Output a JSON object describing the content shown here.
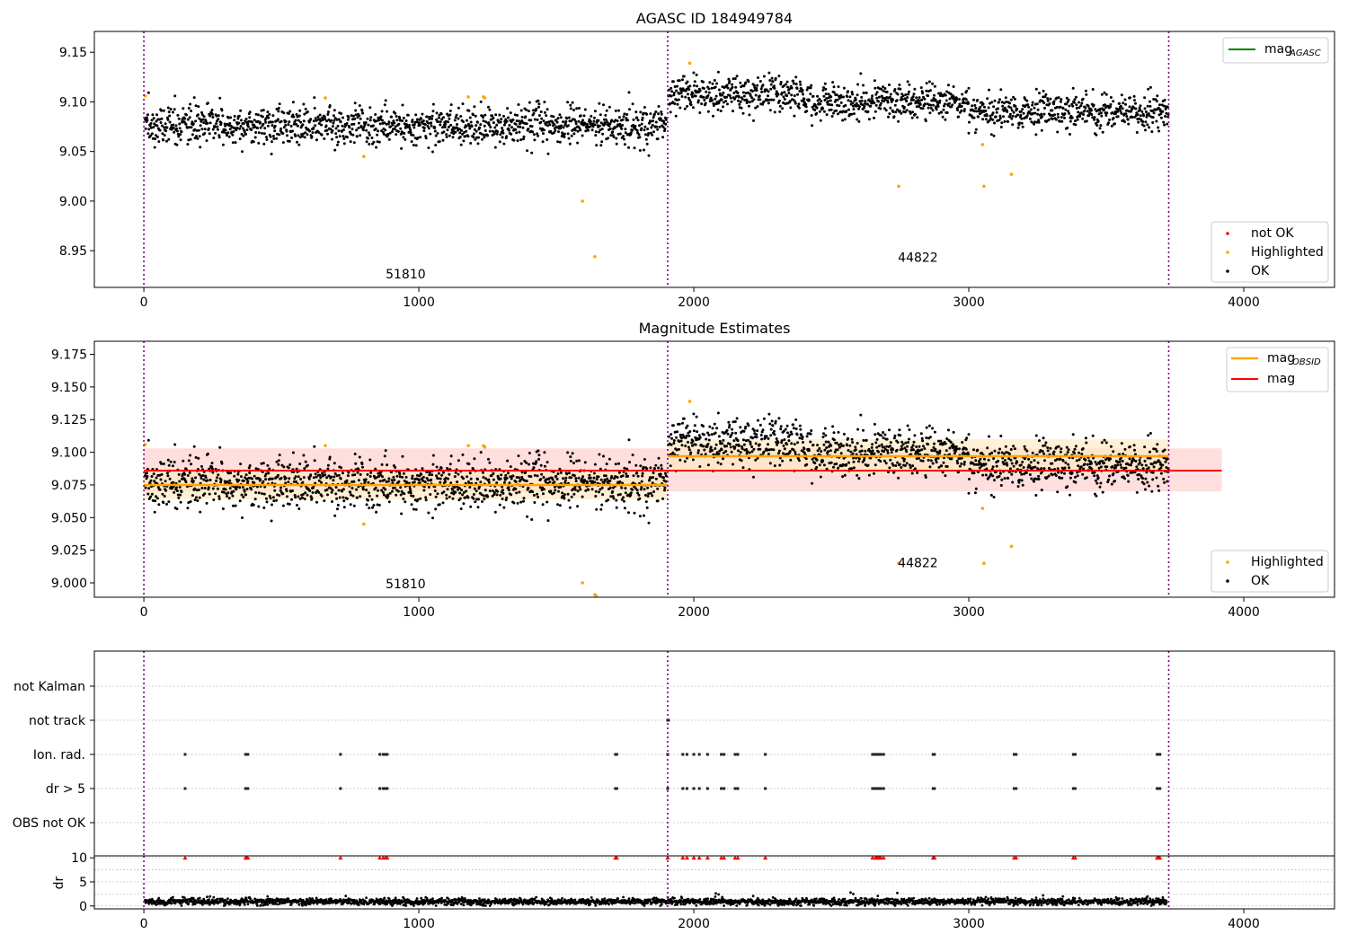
{
  "chart_data": [
    {
      "type": "scatter",
      "title": "AGASC ID 184949784",
      "xlim": [
        -180,
        4330
      ],
      "ylim": [
        8.913,
        9.171
      ],
      "xticks": [
        0,
        1000,
        2000,
        3000,
        4000
      ],
      "yticks": [
        8.95,
        9.0,
        9.05,
        9.1,
        9.15
      ],
      "ytick_labels": [
        "8.95",
        "9.00",
        "9.05",
        "9.10",
        "9.15"
      ],
      "grid": false,
      "vlines": [
        0,
        1905,
        3727
      ],
      "annotations": [
        {
          "text": "51810",
          "x": 952,
          "y": 8.922
        },
        {
          "text": "44822",
          "x": 2815,
          "y": 8.939
        }
      ],
      "series": [
        {
          "name": "OK",
          "color": "#000000",
          "segments": [
            {
              "x0": 5,
              "x1": 1900,
              "mean": 9.076,
              "sd": 0.0095
            },
            {
              "x0": 1908,
              "x1": 2400,
              "mean": 9.108,
              "sd": 0.009
            },
            {
              "x0": 2400,
              "x1": 3000,
              "mean": 9.1,
              "sd": 0.009
            },
            {
              "x0": 3000,
              "x1": 3727,
              "mean": 9.09,
              "sd": 0.009
            }
          ]
        },
        {
          "name": "Highlighted",
          "color": "#ffa500",
          "points": [
            [
              5,
              9.106
            ],
            [
              660,
              9.104
            ],
            [
              800,
              9.045
            ],
            [
              1180,
              9.105
            ],
            [
              1235,
              9.105
            ],
            [
              1240,
              9.104
            ],
            [
              1595,
              9.0
            ],
            [
              1640,
              8.944
            ],
            [
              1985,
              9.139
            ],
            [
              2745,
              9.015
            ],
            [
              3050,
              9.057
            ],
            [
              3055,
              9.015
            ],
            [
              3155,
              9.027
            ]
          ]
        },
        {
          "name": "not OK",
          "color": "#ff0000",
          "points": []
        }
      ],
      "legends": [
        {
          "position": "top-right",
          "entries": [
            {
              "label": "mag",
              "sub": "AGASC",
              "kind": "line",
              "color": "#008000"
            }
          ]
        },
        {
          "position": "bottom-right",
          "entries": [
            {
              "label": "not OK",
              "kind": "dot",
              "color": "#ff0000"
            },
            {
              "label": "Highlighted",
              "kind": "dot",
              "color": "#ffa500"
            },
            {
              "label": "OK",
              "kind": "dot",
              "color": "#000000"
            }
          ]
        }
      ]
    },
    {
      "type": "scatter",
      "title": "Magnitude Estimates",
      "xlim": [
        -180,
        4330
      ],
      "ylim": [
        8.989,
        9.185
      ],
      "xticks": [
        0,
        1000,
        2000,
        3000,
        4000
      ],
      "yticks": [
        9.0,
        9.025,
        9.05,
        9.075,
        9.1,
        9.125,
        9.15,
        9.175
      ],
      "ytick_labels": [
        "9.000",
        "9.025",
        "9.050",
        "9.075",
        "9.100",
        "9.125",
        "9.150",
        "9.175"
      ],
      "grid": false,
      "vlines": [
        0,
        1905,
        3727
      ],
      "bands": [
        {
          "x0": 0,
          "x1": 3920,
          "y0": 9.07,
          "y1": 9.103,
          "color": "#ffcccc",
          "line": 9.086,
          "line_color": "#ff0000",
          "label": "mag"
        },
        {
          "x0": 0,
          "x1": 1905,
          "y0": 9.064,
          "y1": 9.087,
          "color": "#ffe8c0",
          "line": 9.075,
          "line_color": "#ffa500",
          "label": "mag OBSID"
        },
        {
          "x0": 1905,
          "x1": 3727,
          "y0": 9.084,
          "y1": 9.11,
          "color": "#ffe8c0",
          "line": 9.097,
          "line_color": "#ffa500",
          "label": "mag OBSID"
        }
      ],
      "annotations": [
        {
          "text": "51810",
          "x": 952,
          "y": 8.996
        },
        {
          "text": "44822",
          "x": 2815,
          "y": 9.012
        }
      ],
      "series": [
        {
          "name": "OK",
          "color": "#000000",
          "segments": [
            {
              "x0": 5,
              "x1": 1900,
              "mean": 9.076,
              "sd": 0.0095
            },
            {
              "x0": 1908,
              "x1": 2400,
              "mean": 9.108,
              "sd": 0.009
            },
            {
              "x0": 2400,
              "x1": 3000,
              "mean": 9.1,
              "sd": 0.009
            },
            {
              "x0": 3000,
              "x1": 3727,
              "mean": 9.09,
              "sd": 0.009
            }
          ]
        },
        {
          "name": "Highlighted",
          "color": "#ffa500",
          "points": [
            [
              5,
              9.106
            ],
            [
              660,
              9.105
            ],
            [
              800,
              9.045
            ],
            [
              1180,
              9.105
            ],
            [
              1235,
              9.105
            ],
            [
              1240,
              9.104
            ],
            [
              1595,
              9.0
            ],
            [
              1640,
              8.991
            ],
            [
              1645,
              8.99
            ],
            [
              1985,
              9.139
            ],
            [
              2745,
              9.015
            ],
            [
              3050,
              9.057
            ],
            [
              3055,
              9.015
            ],
            [
              3155,
              9.028
            ]
          ]
        }
      ],
      "legends": [
        {
          "position": "top-right",
          "entries": [
            {
              "label": "mag",
              "sub": "OBSID",
              "kind": "line",
              "color": "#ffa500"
            },
            {
              "label": "mag",
              "kind": "line",
              "color": "#ff0000"
            }
          ]
        },
        {
          "position": "bottom-right",
          "entries": [
            {
              "label": "Highlighted",
              "kind": "dot",
              "color": "#ffa500"
            },
            {
              "label": "OK",
              "kind": "dot",
              "color": "#000000"
            }
          ]
        }
      ]
    },
    {
      "type": "scatter",
      "title": "",
      "xlim": [
        -180,
        4330
      ],
      "xticks": [
        0,
        1000,
        2000,
        3000,
        4000
      ],
      "categories": [
        "not Kalman",
        "not track",
        "Ion. rad.",
        "dr > 5",
        "OBS not OK"
      ],
      "grid": true,
      "vlines": [
        0,
        1905,
        3727
      ],
      "flags": {
        "not track": [
          1905,
          1908
        ],
        "Ion. rad.": [
          150,
          370,
          375,
          378,
          715,
          858,
          870,
          878,
          885,
          1715,
          1720,
          1905,
          1960,
          1975,
          2000,
          2020,
          2050,
          2100,
          2110,
          2150,
          2160,
          2260,
          2650,
          2660,
          2665,
          2670,
          2675,
          2680,
          2690,
          2870,
          2875,
          3165,
          3172,
          3380,
          3387,
          3685,
          3690,
          3695
        ],
        "dr > 5": [
          150,
          370,
          375,
          378,
          715,
          858,
          870,
          878,
          885,
          1715,
          1720,
          1905,
          1960,
          1975,
          2000,
          2020,
          2050,
          2100,
          2110,
          2150,
          2160,
          2260,
          2650,
          2660,
          2665,
          2670,
          2675,
          2680,
          2690,
          2870,
          2875,
          3165,
          3172,
          3380,
          3387,
          3685,
          3690,
          3695
        ]
      }
    },
    {
      "type": "scatter",
      "title": "",
      "ylabel": "dr",
      "xlim": [
        -180,
        4330
      ],
      "ylim": [
        -0.6,
        10.4
      ],
      "xticks": [
        0,
        1000,
        2000,
        3000,
        4000
      ],
      "xtick_labels": [
        "0",
        "1000",
        "2000",
        "3000",
        "4000"
      ],
      "yticks": [
        0,
        5,
        10
      ],
      "ytick_labels": [
        "0",
        "5",
        "10"
      ],
      "grid": true,
      "vlines": [
        0,
        1905,
        3727
      ],
      "dr_typical": {
        "x0": 5,
        "x1": 3720,
        "mean": 0.9,
        "sd": 0.35
      },
      "dr_bumps": [
        [
          450,
          2.0
        ],
        [
          1025,
          1.8
        ],
        [
          2080,
          2.6
        ],
        [
          2090,
          2.4
        ],
        [
          2570,
          2.8
        ],
        [
          2580,
          2.5
        ],
        [
          2740,
          2.7
        ],
        [
          3270,
          2.2
        ],
        [
          3650,
          2.0
        ]
      ],
      "outliers_at_10": [
        150,
        370,
        375,
        378,
        715,
        858,
        870,
        878,
        885,
        1715,
        1720,
        1905,
        1960,
        1975,
        2000,
        2020,
        2050,
        2100,
        2110,
        2150,
        2160,
        2260,
        2650,
        2660,
        2665,
        2670,
        2675,
        2680,
        2690,
        2870,
        2875,
        3165,
        3172,
        3380,
        3387,
        3685,
        3690,
        3695
      ]
    }
  ]
}
